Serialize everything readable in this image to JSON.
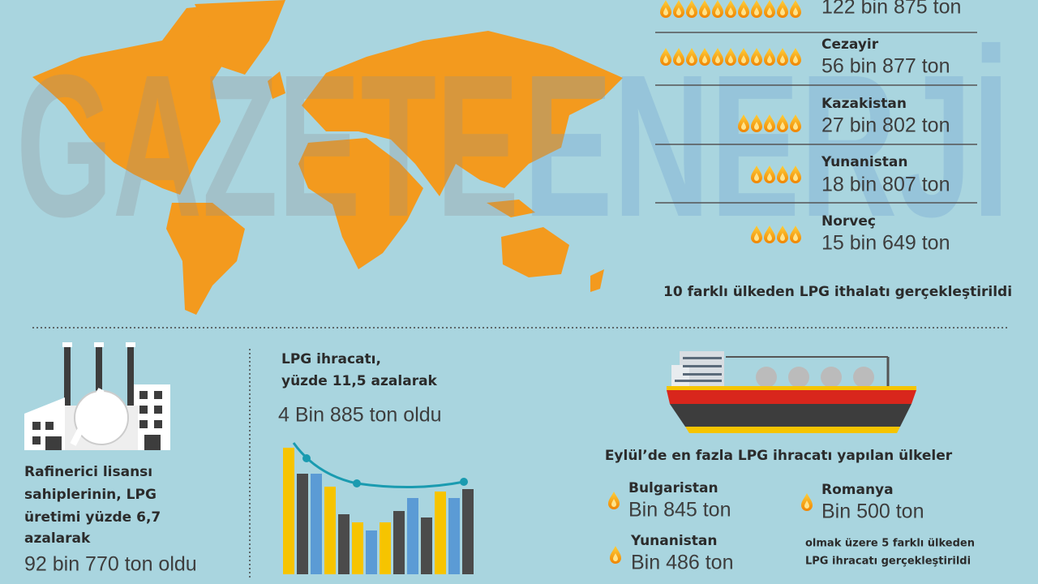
{
  "watermark": {
    "left": "GAZETE",
    "right": "ENERJİ"
  },
  "import_list": {
    "rows": [
      {
        "amount": "122 bin 875 ton"
      },
      {
        "country": "Cezayir",
        "amount": "56 bin 877 ton"
      },
      {
        "country": "Kazakistan",
        "amount": "27 bin 802 ton"
      },
      {
        "country": "Yunanistan",
        "amount": "18 bin 807 ton"
      },
      {
        "country": "Norveç",
        "amount": "15 bin 649 ton"
      }
    ],
    "caption": "10 farklı ülkeden LPG ithalatı gerçekleştirildi"
  },
  "production": {
    "lines": [
      "Rafinerici lisansı",
      "sahiplerinin, LPG",
      "üretimi yüzde 6,7",
      "azalarak"
    ],
    "result": "92 bin 770 ton oldu"
  },
  "export": {
    "lines": [
      "LPG ihracatı,",
      "yüzde 11,5 azalarak"
    ],
    "result": "4 Bin 885 ton oldu"
  },
  "export_countries": {
    "title": "Eylül’de en fazla LPG ihracatı yapılan ülkeler",
    "items": [
      {
        "country": "Bulgaristan",
        "amount": "Bin 845 ton"
      },
      {
        "country": "Yunanistan",
        "amount": "Bin 486 ton"
      },
      {
        "country": "Romanya",
        "amount": "Bin 500 ton"
      }
    ],
    "note_lines": [
      "olmak üzere 5 farklı ülkeden",
      "LPG ihracatı gerçekleştirildi"
    ]
  }
}
